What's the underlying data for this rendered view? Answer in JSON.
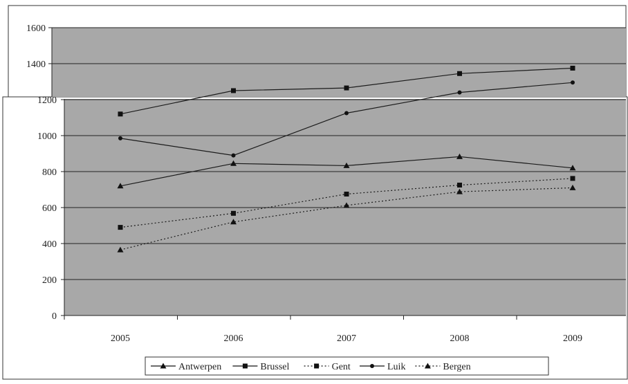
{
  "chart_data": {
    "type": "line",
    "title": "",
    "xlabel": "",
    "ylabel": "",
    "categories": [
      "2005",
      "2006",
      "2007",
      "2008",
      "2009"
    ],
    "ylim": [
      0,
      1600
    ],
    "yticks": [
      0,
      200,
      400,
      600,
      800,
      1000,
      1200,
      1400,
      1600
    ],
    "grid": true,
    "legend_position": "bottom",
    "plot_background": "#a8a8a8",
    "series": [
      {
        "name": "Antwerpen",
        "values": [
          720,
          845,
          833,
          883,
          820
        ],
        "style": "solid",
        "marker": "triangle",
        "color": "#1a1a1a"
      },
      {
        "name": "Brussel",
        "values": [
          1120,
          1250,
          1265,
          1345,
          1375
        ],
        "style": "solid",
        "marker": "square",
        "color": "#1a1a1a"
      },
      {
        "name": "Gent",
        "values": [
          490,
          568,
          675,
          725,
          762
        ],
        "style": "dotted",
        "marker": "square",
        "color": "#1a1a1a"
      },
      {
        "name": "Luik",
        "values": [
          985,
          890,
          1125,
          1240,
          1295
        ],
        "style": "solid",
        "marker": "circle",
        "color": "#1a1a1a"
      },
      {
        "name": "Bergen",
        "values": [
          365,
          520,
          612,
          688,
          710
        ],
        "style": "dotted",
        "marker": "triangle",
        "color": "#1a1a1a"
      }
    ]
  }
}
